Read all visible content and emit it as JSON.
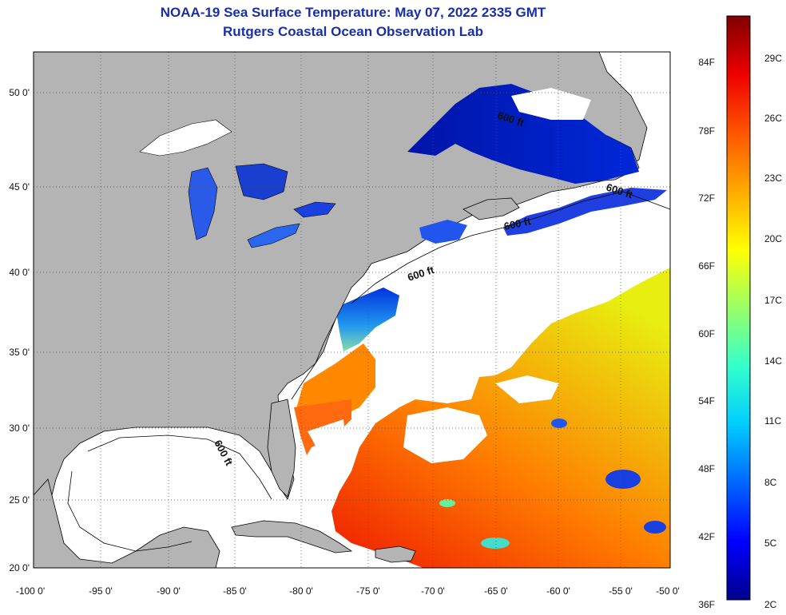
{
  "header": {
    "title": "NOAA-19 Sea Surface Temperature:  May 07, 2022 2335 GMT",
    "subtitle": "Rutgers Coastal Ocean Observation Lab"
  },
  "map": {
    "lon_ticks": [
      "-100 0'",
      "-95 0'",
      "-90 0'",
      "-85 0'",
      "-80 0'",
      "-75 0'",
      "-70 0'",
      "-65 0'",
      "-60 0'",
      "-55 0'",
      "-50 0'"
    ],
    "lat_ticks": [
      "50 0'",
      "45 0'",
      "40 0'",
      "35 0'",
      "30 0'",
      "25 0'",
      "20 0'"
    ],
    "contour_label": "600 ft",
    "colors": {
      "land": "#b4b4b4",
      "cloud": "#ffffff",
      "border": "#000000"
    }
  },
  "colorbar": {
    "fahrenheit": [
      "84F",
      "78F",
      "72F",
      "66F",
      "60F",
      "54F",
      "48F",
      "42F",
      "36F"
    ],
    "celsius": [
      "29C",
      "26C",
      "23C",
      "20C",
      "17C",
      "14C",
      "11C",
      "8C",
      "5C",
      "2C"
    ],
    "stops": [
      "#00008c",
      "#0000ff",
      "#0066ff",
      "#00ccff",
      "#33ffcc",
      "#99ff66",
      "#ffff00",
      "#ffaa00",
      "#ff5500",
      "#ee0000",
      "#800000"
    ]
  }
}
